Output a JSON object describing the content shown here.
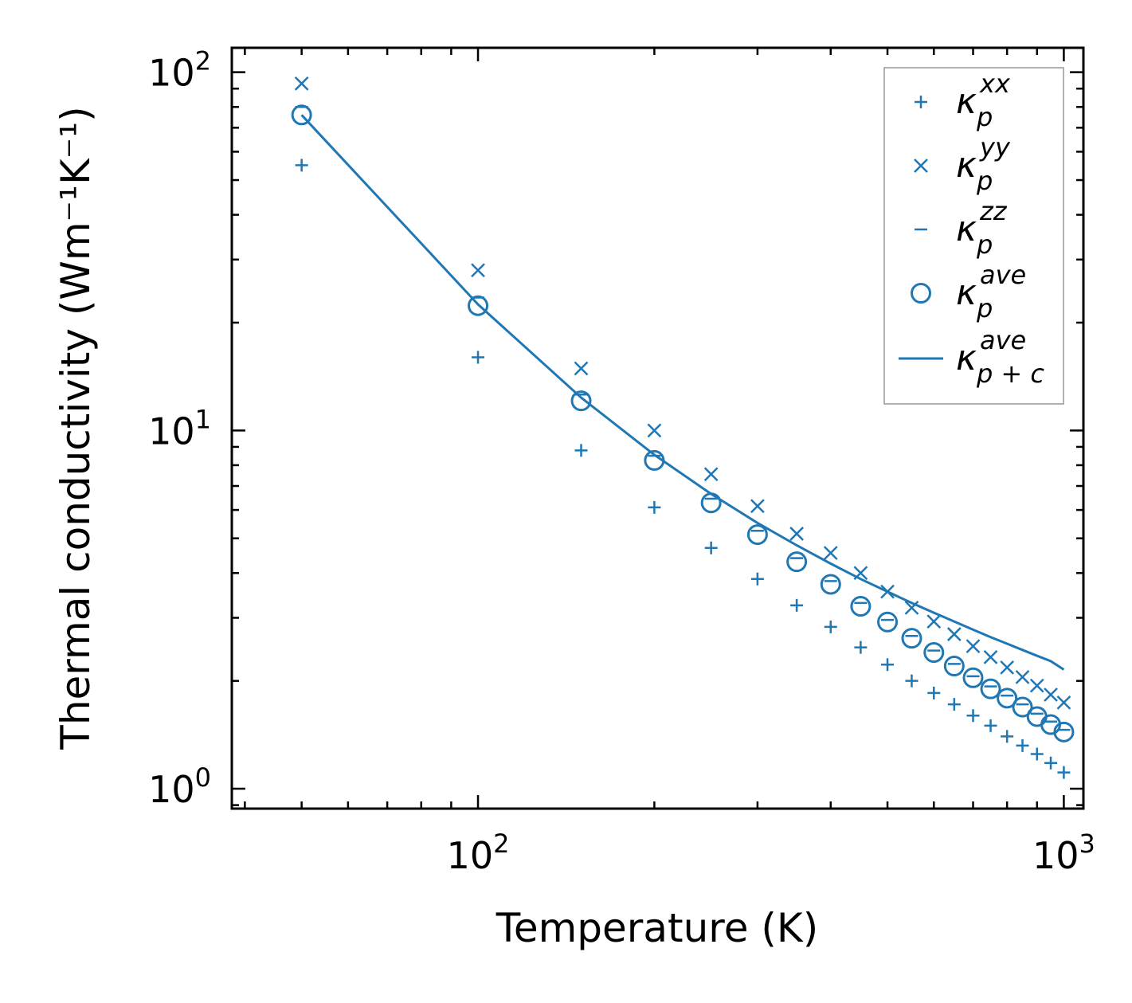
{
  "chart_data": {
    "type": "scatter",
    "scale": {
      "x": "log",
      "y": "log"
    },
    "xlabel": "Temperature (K)",
    "ylabel": "Thermal conductivity (Wm⁻¹K⁻¹)",
    "xlim": [
      38,
      1080
    ],
    "ylim": [
      0.88,
      117
    ],
    "x_ticks": [
      {
        "value": 100,
        "base": "10",
        "exp": "2"
      },
      {
        "value": 1000,
        "base": "10",
        "exp": "3"
      }
    ],
    "y_ticks": [
      {
        "value": 1,
        "base": "10",
        "exp": "0"
      },
      {
        "value": 10,
        "base": "10",
        "exp": "1"
      },
      {
        "value": 100,
        "base": "10",
        "exp": "2"
      }
    ],
    "color": "#1f77b4",
    "legend_position": "top-right",
    "series": [
      {
        "name": "kappa_p^xx",
        "marker": "plus",
        "legend": {
          "base": "κ",
          "sub": "p",
          "sup": "xx"
        },
        "x": [
          50,
          100,
          150,
          200,
          250,
          300,
          350,
          400,
          450,
          500,
          550,
          600,
          650,
          700,
          750,
          800,
          850,
          900,
          950,
          1000
        ],
        "y": [
          55,
          16,
          8.8,
          6.1,
          4.7,
          3.85,
          3.25,
          2.83,
          2.48,
          2.22,
          2.0,
          1.85,
          1.72,
          1.6,
          1.5,
          1.4,
          1.32,
          1.25,
          1.18,
          1.11
        ]
      },
      {
        "name": "kappa_p^yy",
        "marker": "x",
        "legend": {
          "base": "κ",
          "sub": "p",
          "sup": "yy"
        },
        "x": [
          50,
          100,
          150,
          200,
          250,
          300,
          350,
          400,
          450,
          500,
          550,
          600,
          650,
          700,
          750,
          800,
          850,
          900,
          950,
          1000
        ],
        "y": [
          93,
          28,
          14.9,
          10.0,
          7.55,
          6.15,
          5.15,
          4.55,
          4.0,
          3.55,
          3.2,
          2.93,
          2.7,
          2.5,
          2.33,
          2.18,
          2.05,
          1.94,
          1.83,
          1.74
        ]
      },
      {
        "name": "kappa_p^zz",
        "marker": "hline",
        "legend": {
          "base": "κ",
          "sub": "p",
          "sup": "zz"
        },
        "x": [
          50,
          100,
          150,
          200,
          250,
          300,
          350,
          400,
          450,
          500,
          550,
          600,
          650,
          700,
          750,
          800,
          850,
          900,
          950,
          1000
        ],
        "y": [
          80,
          23.5,
          12.6,
          8.5,
          6.45,
          5.25,
          4.4,
          3.8,
          3.3,
          2.96,
          2.67,
          2.43,
          2.23,
          2.06,
          1.93,
          1.82,
          1.72,
          1.62,
          1.54,
          1.46
        ]
      },
      {
        "name": "kappa_p^ave",
        "marker": "circle",
        "legend": {
          "base": "κ",
          "sub": "p",
          "sup": "ave"
        },
        "x": [
          50,
          100,
          150,
          200,
          250,
          300,
          350,
          400,
          450,
          500,
          550,
          600,
          650,
          700,
          750,
          800,
          850,
          900,
          950,
          1000
        ],
        "y": [
          76,
          22.3,
          12.1,
          8.25,
          6.28,
          5.12,
          4.3,
          3.72,
          3.23,
          2.92,
          2.63,
          2.4,
          2.2,
          2.04,
          1.9,
          1.79,
          1.69,
          1.59,
          1.51,
          1.44
        ]
      },
      {
        "name": "kappa_p+c^ave",
        "marker": "line",
        "legend": {
          "base": "κ",
          "sub": "p + c",
          "sup": "ave"
        },
        "x": [
          50,
          100,
          150,
          200,
          250,
          300,
          350,
          400,
          450,
          500,
          550,
          600,
          650,
          700,
          750,
          800,
          850,
          900,
          950,
          1000
        ],
        "y": [
          76,
          22.5,
          12.35,
          8.55,
          6.65,
          5.52,
          4.78,
          4.25,
          3.85,
          3.55,
          3.3,
          3.1,
          2.93,
          2.78,
          2.65,
          2.54,
          2.44,
          2.35,
          2.27,
          2.15
        ]
      }
    ]
  }
}
